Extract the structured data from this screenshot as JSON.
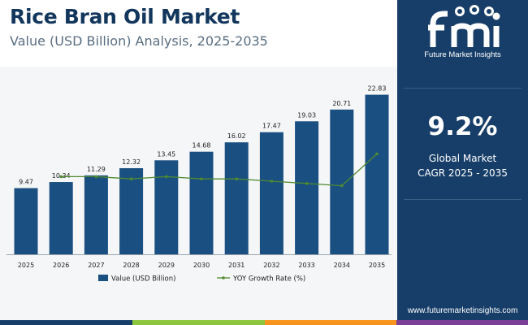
{
  "header": {
    "title": "Rice Bran Oil Market",
    "subtitle": "Value (USD Billion) Analysis, 2025-2035"
  },
  "sidebar": {
    "brand_name": "Future Market Insights",
    "cagr_value": "9.2%",
    "cagr_label_line1": "Global Market",
    "cagr_label_line2": "CAGR 2025 - 2035",
    "website": "www.futuremarketinsights.com"
  },
  "colors": {
    "title": "#12365c",
    "bar": "#1a4f82",
    "line": "#4e8a2f",
    "sidebar_bg": "#173e69",
    "strip": [
      "#173e69",
      "#8cc63f",
      "#f7941d",
      "#7b3f98"
    ]
  },
  "chart_data": {
    "type": "bar",
    "categories": [
      "2025",
      "2026",
      "2027",
      "2028",
      "2029",
      "2030",
      "2031",
      "2032",
      "2033",
      "2034",
      "2035"
    ],
    "series": [
      {
        "name": "Value (USD Billion)",
        "type": "bar",
        "values": [
          9.47,
          10.34,
          11.29,
          12.32,
          13.45,
          14.68,
          16.02,
          17.47,
          19.03,
          20.71,
          22.83
        ],
        "labels": [
          "9.47",
          "10.34",
          "11.29",
          "12.32",
          "13.45",
          "14.68",
          "16.02",
          "17.47",
          "19.03",
          "20.71",
          "22.83"
        ]
      },
      {
        "name": "YOY Growth Rate (%)",
        "type": "line",
        "values": [
          null,
          9.2,
          9.2,
          9.1,
          9.2,
          9.1,
          9.1,
          9.0,
          8.9,
          8.8,
          10.2
        ]
      }
    ],
    "title": "Rice Bran Oil Market",
    "xlabel": "",
    "ylabel": "",
    "ylim": [
      0,
      25
    ],
    "legend": "bottom-center",
    "grid": false
  }
}
